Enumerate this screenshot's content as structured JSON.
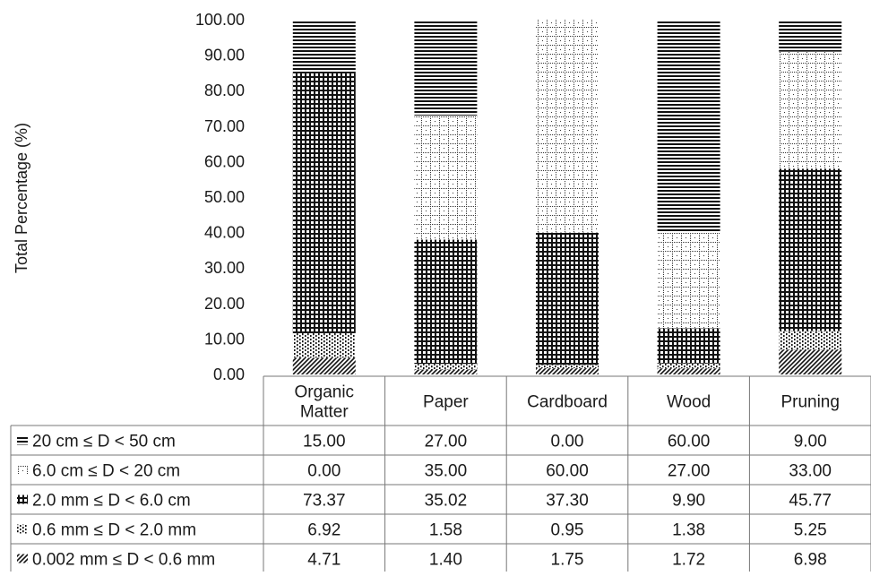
{
  "chart_data": {
    "type": "bar",
    "stacked": true,
    "title": "",
    "xlabel": "",
    "ylabel": "Total Percentage (%)",
    "ylim": [
      0,
      100
    ],
    "yticks": [
      "0.00",
      "10.00",
      "20.00",
      "30.00",
      "40.00",
      "50.00",
      "60.00",
      "70.00",
      "80.00",
      "90.00",
      "100.00"
    ],
    "grid": false,
    "legend": "data-table",
    "categories": [
      "Organic\nMatter",
      "Paper",
      "Cardboard",
      "Wood",
      "Pruning"
    ],
    "series": [
      {
        "name": "0.002 mm ≤ D < 0.6 mm",
        "pattern": "diagonal",
        "values": [
          4.71,
          1.4,
          1.75,
          1.72,
          6.98
        ]
      },
      {
        "name": "0.6 mm ≤ D < 2.0 mm",
        "pattern": "dots",
        "values": [
          6.92,
          1.58,
          0.95,
          1.38,
          5.25
        ]
      },
      {
        "name": "2.0 mm ≤ D < 6.0 cm",
        "pattern": "dense-grid",
        "values": [
          73.37,
          35.02,
          37.3,
          9.9,
          45.77
        ]
      },
      {
        "name": "6.0 cm ≤ D < 20 cm",
        "pattern": "dotted-grid",
        "values": [
          0.0,
          35.0,
          60.0,
          27.0,
          33.0
        ]
      },
      {
        "name": "20 cm ≤ D < 50 cm",
        "pattern": "horizontal-lines",
        "values": [
          15.0,
          27.0,
          0.0,
          60.0,
          9.0
        ]
      }
    ],
    "table_rows": [
      {
        "label": "20 cm ≤ D < 50 cm",
        "cells": [
          "15.00",
          "27.00",
          "0.00",
          "60.00",
          "9.00"
        ]
      },
      {
        "label": "6.0 cm ≤ D < 20 cm",
        "cells": [
          "0.00",
          "35.00",
          "60.00",
          "27.00",
          "33.00"
        ]
      },
      {
        "label": "2.0 mm ≤ D < 6.0 cm",
        "cells": [
          "73.37",
          "35.02",
          "37.30",
          "9.90",
          "45.77"
        ]
      },
      {
        "label": "0.6 mm ≤ D < 2.0 mm",
        "cells": [
          "6.92",
          "1.58",
          "0.95",
          "1.38",
          "5.25"
        ]
      },
      {
        "label": "0.002 mm ≤ D < 0.6 mm",
        "cells": [
          "4.71",
          "1.40",
          "1.75",
          "1.72",
          "6.98"
        ]
      }
    ]
  }
}
